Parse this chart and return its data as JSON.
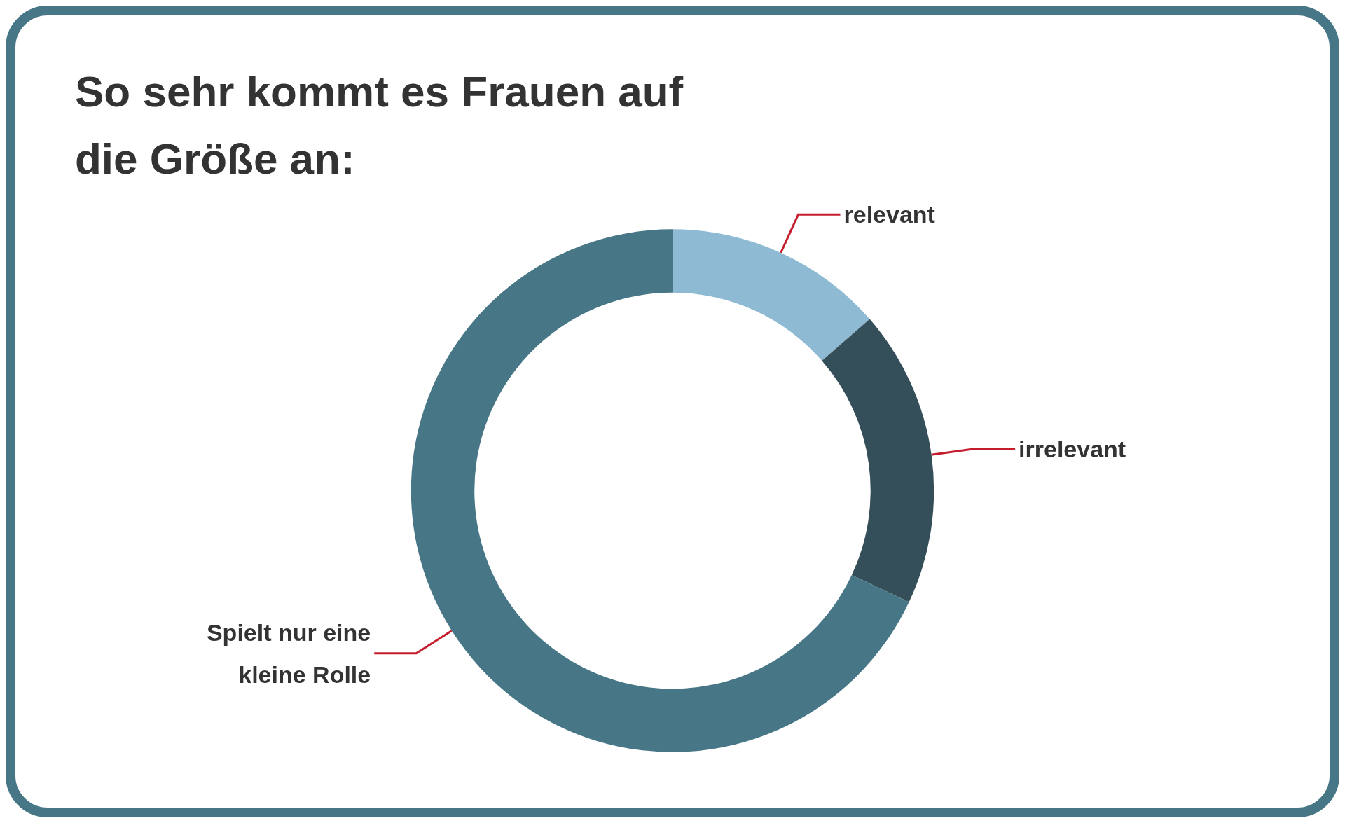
{
  "chart_data": {
    "type": "donut",
    "title": "So sehr kommt es Frauen auf die Größe an:",
    "categories": [
      "relevant",
      "irrelevant",
      "Spielt nur eine kleine Rolle"
    ],
    "values": [
      13.6,
      18.4,
      68
    ],
    "colors": [
      "#8fbad3",
      "#354f5a",
      "#477786"
    ],
    "legend": false
  }
}
